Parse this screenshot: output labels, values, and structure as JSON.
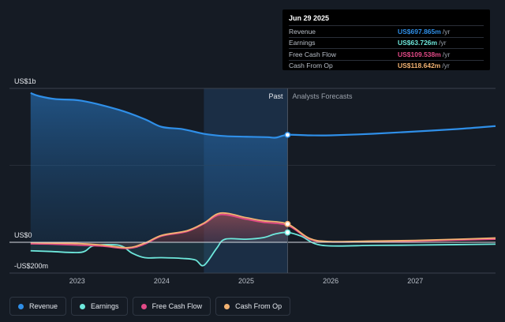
{
  "chart_data": {
    "type": "area",
    "y_unit": "US$ millions",
    "ylim": [
      -300,
      1050
    ],
    "y_tick_labels": [
      "US$1b",
      "US$0",
      "-US$200m"
    ],
    "y_tick_values": [
      1000,
      0,
      -200
    ],
    "x_tick_labels": [
      "2023",
      "2024",
      "2025",
      "2026",
      "2027"
    ],
    "x_tick_values": [
      2023,
      2024,
      2025,
      2026,
      2027
    ],
    "xlim": [
      2022.2,
      2027.95
    ],
    "past_label": "Past",
    "forecast_label": "Analysts Forecasts",
    "divider_x": 2025.49,
    "highlight_start_x": 2024.5,
    "series": [
      {
        "name": "Revenue",
        "color": "#2f8fe8",
        "x": [
          2022.45,
          2022.55,
          2022.75,
          2023.05,
          2023.5,
          2023.8,
          2024.0,
          2024.25,
          2024.5,
          2024.75,
          2025.0,
          2025.25,
          2025.35,
          2025.49,
          2025.75,
          2026.0,
          2026.5,
          2027.0,
          2027.5,
          2027.95
        ],
        "y": [
          970,
          950,
          930,
          920,
          860,
          800,
          750,
          735,
          705,
          690,
          686,
          683,
          680,
          698,
          695,
          695,
          705,
          720,
          736,
          755
        ]
      },
      {
        "name": "Earnings",
        "color": "#6ee8dc",
        "x": [
          2022.45,
          2022.7,
          2023.05,
          2023.2,
          2023.5,
          2023.65,
          2023.8,
          2024.0,
          2024.25,
          2024.4,
          2024.5,
          2024.65,
          2024.75,
          2025.0,
          2025.2,
          2025.35,
          2025.49,
          2025.65,
          2025.9,
          2026.5,
          2027.0,
          2027.5,
          2027.95
        ],
        "y": [
          -55,
          -60,
          -65,
          -22,
          -20,
          -70,
          -100,
          -100,
          -105,
          -115,
          -150,
          -40,
          20,
          20,
          30,
          55,
          64,
          40,
          -20,
          -20,
          -18,
          -15,
          -12
        ]
      },
      {
        "name": "Free Cash Flow",
        "color": "#e24a87",
        "x": [
          2022.45,
          2022.7,
          2023.0,
          2023.3,
          2023.6,
          2023.8,
          2024.0,
          2024.3,
          2024.5,
          2024.7,
          2025.0,
          2025.2,
          2025.49,
          2025.75,
          2026.0,
          2026.5,
          2027.0,
          2027.5,
          2027.95
        ],
        "y": [
          -10,
          -12,
          -18,
          -25,
          -40,
          -12,
          40,
          70,
          120,
          180,
          150,
          130,
          110,
          20,
          2,
          4,
          8,
          14,
          20
        ]
      },
      {
        "name": "Cash From Op",
        "color": "#f2b272",
        "x": [
          2022.45,
          2022.7,
          2023.0,
          2023.3,
          2023.6,
          2023.8,
          2024.0,
          2024.3,
          2024.5,
          2024.7,
          2025.0,
          2025.2,
          2025.49,
          2025.75,
          2026.0,
          2026.5,
          2027.0,
          2027.5,
          2027.95
        ],
        "y": [
          -2,
          -5,
          -8,
          -18,
          -35,
          -5,
          45,
          75,
          125,
          190,
          160,
          140,
          119,
          25,
          5,
          8,
          12,
          20,
          28
        ]
      }
    ],
    "legend_placement": "bottom"
  },
  "tooltip": {
    "date": "Jun 29 2025",
    "rows": [
      {
        "label": "Revenue",
        "value": "US$697.865m",
        "unit": "/yr",
        "color": "#2f8fe8"
      },
      {
        "label": "Earnings",
        "value": "US$63.726m",
        "unit": "/yr",
        "color": "#6ee8dc"
      },
      {
        "label": "Free Cash Flow",
        "value": "US$109.538m",
        "unit": "/yr",
        "color": "#e24a87"
      },
      {
        "label": "Cash From Op",
        "value": "US$118.642m",
        "unit": "/yr",
        "color": "#f2b272"
      }
    ]
  },
  "legend": [
    {
      "label": "Revenue",
      "color": "#2f8fe8"
    },
    {
      "label": "Earnings",
      "color": "#6ee8dc"
    },
    {
      "label": "Free Cash Flow",
      "color": "#e24a87"
    },
    {
      "label": "Cash From Op",
      "color": "#f2b272"
    }
  ]
}
